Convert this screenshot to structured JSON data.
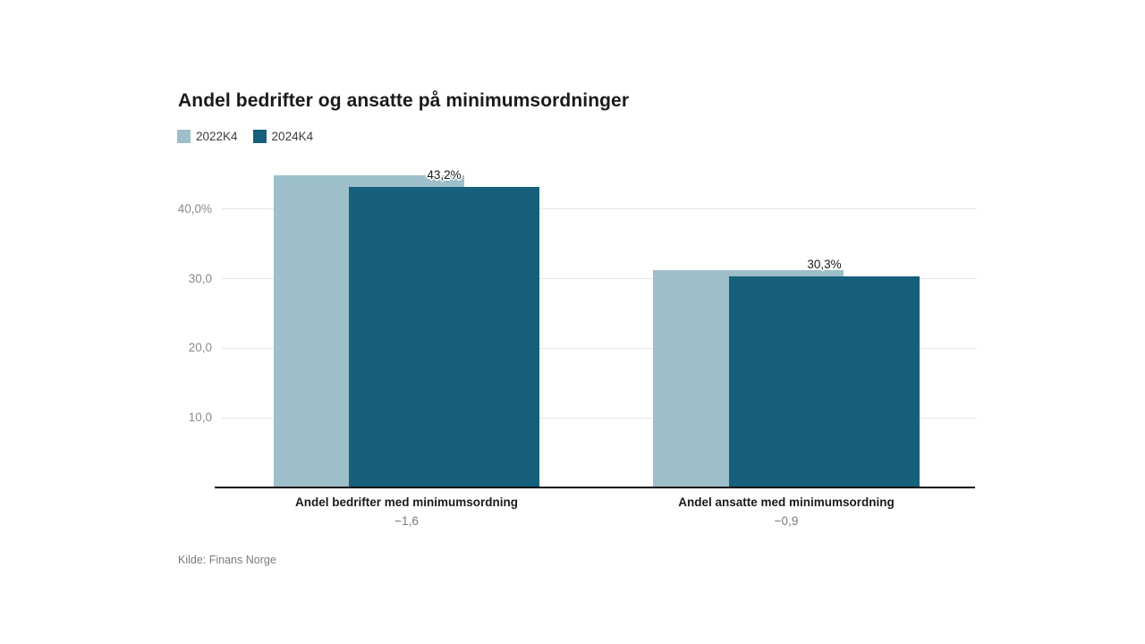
{
  "title": "Andel bedrifter og ansatte på minimumsordninger",
  "source": "Kilde: Finans Norge",
  "legend": [
    {
      "label": "2022K4",
      "color": "#9dbfca"
    },
    {
      "label": "2024K4",
      "color": "#16607c"
    }
  ],
  "y_axis": {
    "ticks": [
      {
        "label": "40,0%",
        "value": 40
      },
      {
        "label": "30,0",
        "value": 30
      },
      {
        "label": "20,0",
        "value": 20
      },
      {
        "label": "10,0",
        "value": 10
      }
    ]
  },
  "chart_data": {
    "type": "bar",
    "title": "Andel bedrifter og ansatte på minimumsordninger",
    "categories": [
      "Andel bedrifter med minimumsordning",
      "Andel ansatte med minimumsordning"
    ],
    "series": [
      {
        "name": "2022K4",
        "color": "#9dbfca",
        "values": [
          44.8,
          31.2
        ]
      },
      {
        "name": "2024K4",
        "color": "#16607c",
        "values": [
          43.2,
          30.3
        ]
      }
    ],
    "value_labels": [
      "43,2%",
      "30,3%"
    ],
    "diff_labels": [
      "−1,6",
      "−0,9"
    ],
    "xlabel": "",
    "ylabel": "",
    "ylim": [
      0,
      45
    ],
    "grid": true,
    "legend_position": "top-left",
    "source": "Kilde: Finans Norge"
  }
}
